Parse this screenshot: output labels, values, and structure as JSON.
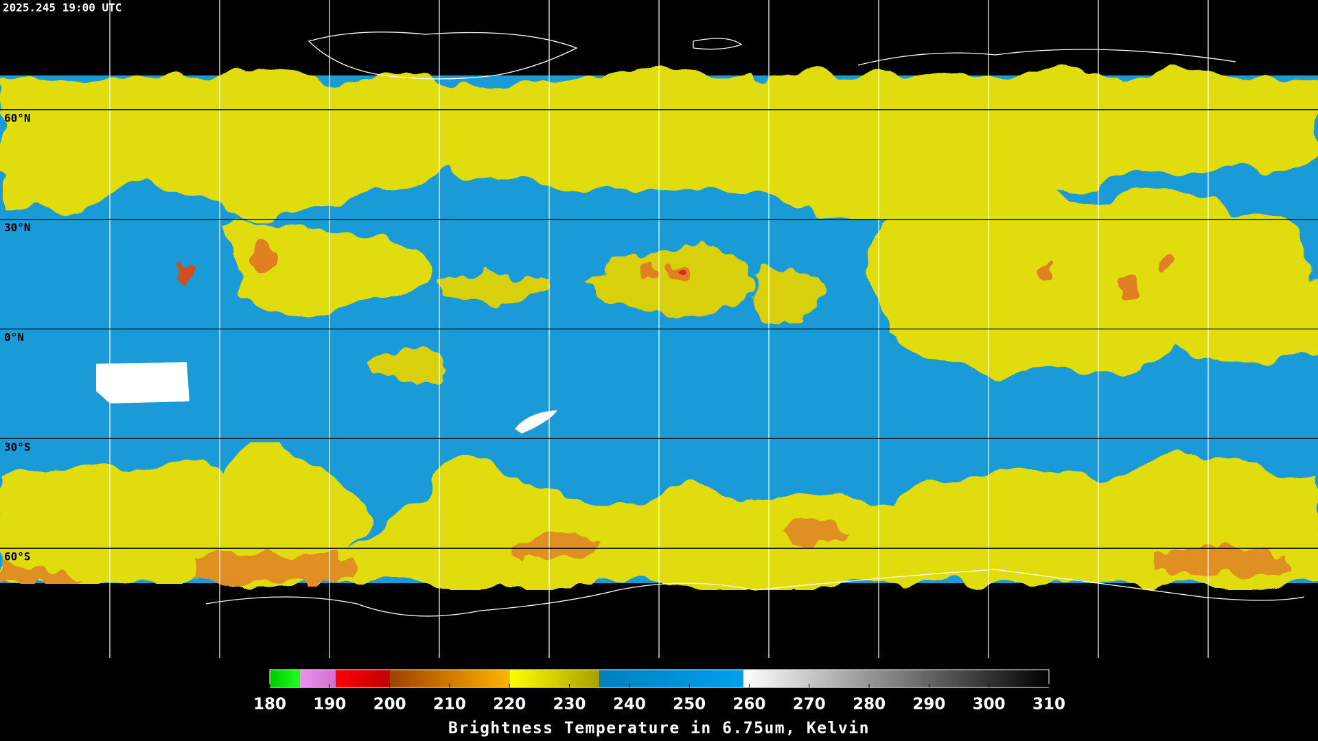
{
  "title": "2025.245 19:00 UTC",
  "map": {
    "ylim": [
      -90,
      90
    ],
    "lat_lines": [
      {
        "value": 60,
        "label": "60°N"
      },
      {
        "value": 30,
        "label": "30°N"
      },
      {
        "value": 0,
        "label": "0°N"
      },
      {
        "value": -30,
        "label": "30°S"
      },
      {
        "value": -60,
        "label": "60°S"
      }
    ]
  },
  "colorbar": {
    "label": "Brightness Temperature in 6.75um, Kelvin",
    "lim": [
      180,
      310
    ],
    "ticks": [
      180,
      190,
      200,
      210,
      220,
      230,
      240,
      250,
      260,
      270,
      280,
      290,
      300,
      310
    ],
    "segments": [
      {
        "from": 180,
        "to": 185,
        "colors": [
          "#00c800",
          "#20ff20"
        ]
      },
      {
        "from": 185,
        "to": 191,
        "colors": [
          "#f090f0",
          "#d070d0"
        ]
      },
      {
        "from": 191,
        "to": 200,
        "colors": [
          "#ff0000",
          "#c00000"
        ]
      },
      {
        "from": 200,
        "to": 220,
        "colors": [
          "#a04000",
          "#ffb400"
        ]
      },
      {
        "from": 220,
        "to": 235,
        "colors": [
          "#ffff00",
          "#a8a000"
        ]
      },
      {
        "from": 235,
        "to": 259,
        "colors": [
          "#0080c0",
          "#00a0f0"
        ]
      },
      {
        "from": 259,
        "to": 310,
        "colors": [
          "#ffffff",
          "#000000"
        ]
      }
    ]
  }
}
